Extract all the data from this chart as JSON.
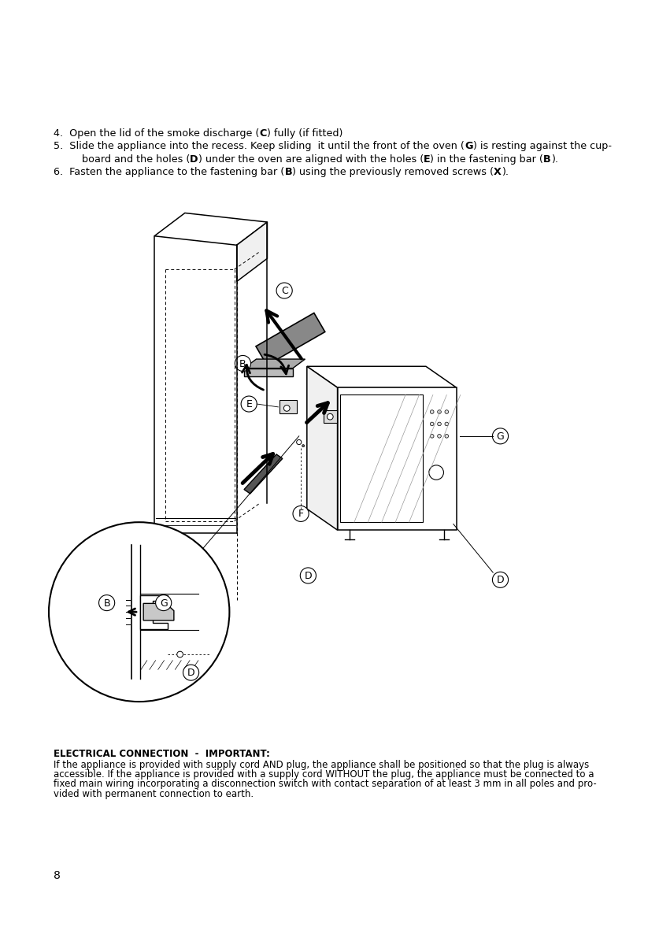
{
  "bg_color": "#ffffff",
  "text_color": "#000000",
  "page_number": "8",
  "electrical_title": "ELECTRICAL CONNECTION  -  IMPORTANT:",
  "electrical_body_lines": [
    "If the appliance is provided with supply cord AND plug, the appliance shall be positioned so that the plug is always",
    "accessible. If the appliance is provided with a supply cord WITHOUT the plug, the appliance must be connected to a",
    "fixed main wiring incorporating a disconnection switch with contact separation of at least 3 mm in all poles and pro-",
    "vided with permanent connection to earth."
  ],
  "instruction_line4": "4.  Open the lid of the smoke discharge (",
  "instruction_line4b": "C",
  "instruction_line4c": ") fully (if fitted)",
  "instruction_line5a": "5.  Slide the appliance into the recess. Keep sliding  it until the front of the oven (",
  "instruction_line5b": "G",
  "instruction_line5c": ") is resting against the cup-",
  "instruction_line5cont_a": "     board and the holes (",
  "instruction_line5cont_b": "D",
  "instruction_line5cont_c": ") under the oven are aligned with the holes (",
  "instruction_line5cont_d": "E",
  "instruction_line5cont_e": ") in the fastening bar (",
  "instruction_line5cont_f": "B",
  "instruction_line5cont_g": ").",
  "instruction_line6a": "6.  Fasten the appliance to the fastening bar (",
  "instruction_line6b": "B",
  "instruction_line6c": ") using the previously removed screws (",
  "instruction_line6d": "X",
  "instruction_line6e": ")."
}
